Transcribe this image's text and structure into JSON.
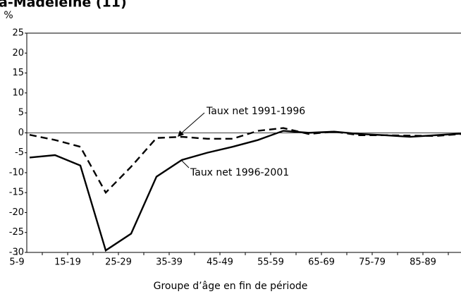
{
  "chart_data": {
    "type": "line",
    "title": "a-Madeleine (11)",
    "y_unit": "%",
    "x_label": "Groupe d’âge en fin de période",
    "categories": [
      "5-9",
      null,
      "15-19",
      null,
      "25-29",
      null,
      "35-39",
      null,
      "45-49",
      null,
      "55-59",
      null,
      "65-69",
      null,
      "75-79",
      null,
      "85-89",
      null
    ],
    "series": [
      {
        "name": "Taux net 1991-1996",
        "color": "#000000",
        "dashed": true,
        "values": [
          -0.5,
          -1.8,
          -3.5,
          -15,
          -8.5,
          -1.3,
          -1,
          -1.5,
          -1.5,
          0.5,
          1.2,
          -0.3,
          0.3,
          -0.6,
          -0.6,
          -0.7,
          -0.8,
          -0.3
        ]
      },
      {
        "name": "Taux net 1996-2001",
        "color": "#000000",
        "dashed": false,
        "values": [
          -6.2,
          -5.6,
          -8.2,
          -29.5,
          -25.3,
          -11,
          -6.8,
          -5,
          -3.5,
          -1.8,
          0.5,
          0,
          0.3,
          -0.3,
          -0.6,
          -1,
          -0.6,
          -0.2
        ]
      }
    ],
    "ylim": [
      -30,
      25
    ],
    "yticks": [
      25,
      20,
      15,
      10,
      5,
      0,
      -5,
      -10,
      -15,
      -20,
      -25,
      -30
    ],
    "zero_line": true
  }
}
